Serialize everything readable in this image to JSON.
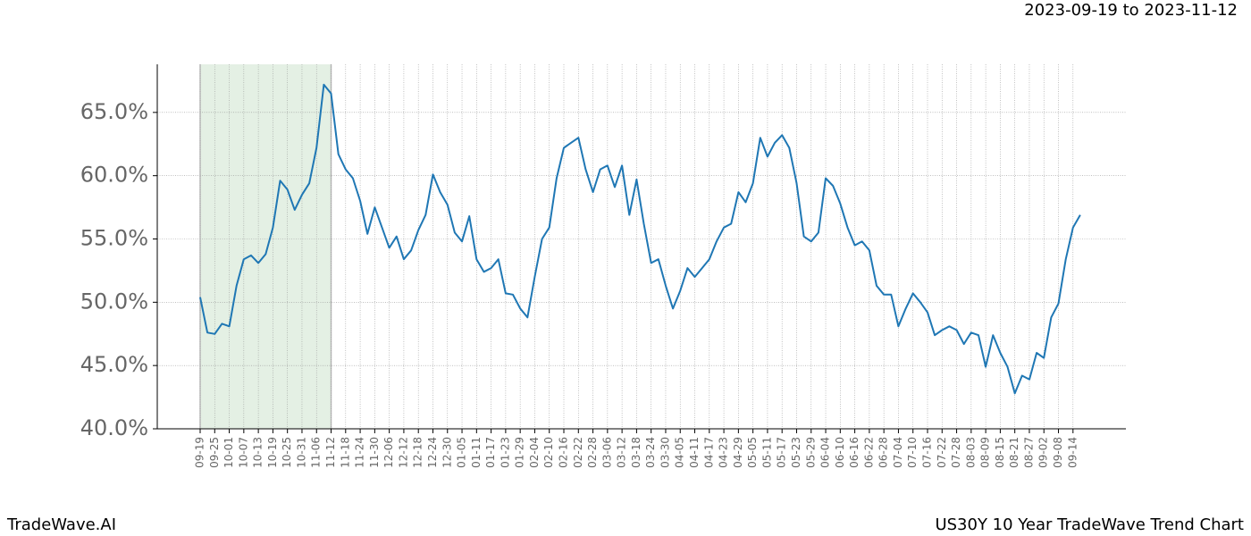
{
  "chart_data": {
    "type": "line",
    "title": "2023-09-19 to 2023-11-12",
    "footer_left": "TradeWave.AI",
    "footer_right": "US30Y 10 Year TradeWave Trend Chart",
    "color": "#1f77b4",
    "highlight": {
      "from": "09-19",
      "to": "11-12",
      "color": "#e4f0e4"
    },
    "grid": true,
    "ylim": [
      40,
      68.8
    ],
    "yticks": [
      {
        "value": 40,
        "label": "40.0%"
      },
      {
        "value": 45,
        "label": "45.0%"
      },
      {
        "value": 50,
        "label": "50.0%"
      },
      {
        "value": 55,
        "label": "55.0%"
      },
      {
        "value": 60,
        "label": "60.0%"
      },
      {
        "value": 65,
        "label": "65.0%"
      }
    ],
    "categories": [
      "09-19",
      null,
      "09-25",
      null,
      "10-01",
      null,
      "10-07",
      null,
      "10-13",
      null,
      "10-19",
      null,
      "10-25",
      null,
      "10-31",
      null,
      "11-06",
      null,
      "11-12",
      null,
      "11-18",
      null,
      "11-24",
      null,
      "11-30",
      null,
      "12-06",
      null,
      "12-12",
      null,
      "12-18",
      null,
      "12-24",
      null,
      "12-30",
      null,
      "01-05",
      null,
      "01-11",
      null,
      "01-17",
      null,
      "01-23",
      null,
      "01-29",
      null,
      "02-04",
      null,
      "02-10",
      null,
      "02-16",
      null,
      "02-22",
      null,
      "02-28",
      null,
      "03-06",
      null,
      "03-12",
      null,
      "03-18",
      null,
      "03-24",
      null,
      "03-30",
      null,
      "04-05",
      null,
      "04-11",
      null,
      "04-17",
      null,
      "04-23",
      null,
      "04-29",
      null,
      "05-05",
      null,
      "05-11",
      null,
      "05-17",
      null,
      "05-23",
      null,
      "05-29",
      null,
      "06-04",
      null,
      "06-10",
      null,
      "06-16",
      null,
      "06-22",
      null,
      "06-28",
      null,
      "07-04",
      null,
      "07-10",
      null,
      "07-16",
      null,
      "07-22",
      null,
      "07-28",
      null,
      "08-03",
      null,
      "08-09",
      null,
      "08-15",
      null,
      "08-21",
      null,
      "08-27",
      null,
      "09-02",
      null,
      "09-08",
      null,
      "09-14",
      null
    ],
    "values": [
      50.4,
      47.6,
      47.5,
      48.3,
      48.1,
      51.3,
      53.4,
      53.7,
      53.1,
      53.8,
      55.9,
      59.6,
      58.9,
      57.3,
      58.5,
      59.4,
      62.2,
      67.2,
      66.5,
      61.7,
      60.5,
      59.8,
      58.0,
      55.4,
      57.5,
      55.9,
      54.3,
      55.2,
      53.4,
      54.1,
      55.7,
      56.9,
      60.1,
      58.7,
      57.7,
      55.5,
      54.8,
      56.8,
      53.4,
      52.4,
      52.7,
      53.4,
      50.7,
      50.6,
      49.5,
      48.8,
      52.0,
      55.0,
      55.9,
      59.8,
      62.2,
      62.6,
      63.0,
      60.5,
      58.7,
      60.5,
      60.8,
      59.1,
      60.8,
      56.9,
      59.7,
      56.2,
      53.1,
      53.4,
      51.3,
      49.5,
      50.9,
      52.7,
      52.0,
      52.7,
      53.4,
      54.8,
      55.9,
      56.2,
      58.7,
      57.9,
      59.4,
      63.0,
      61.5,
      62.6,
      63.2,
      62.2,
      59.4,
      55.2,
      54.8,
      55.5,
      59.8,
      59.2,
      57.8,
      55.9,
      54.5,
      54.8,
      54.1,
      51.3,
      50.6,
      50.6,
      48.1,
      49.5,
      50.7,
      50.0,
      49.2,
      47.4,
      47.8,
      48.1,
      47.8,
      46.7,
      47.6,
      47.4,
      44.9,
      47.4,
      46.0,
      44.9,
      42.8,
      44.2,
      43.9,
      46.0,
      45.6,
      48.8,
      49.9,
      53.4,
      55.9,
      56.9
    ]
  }
}
